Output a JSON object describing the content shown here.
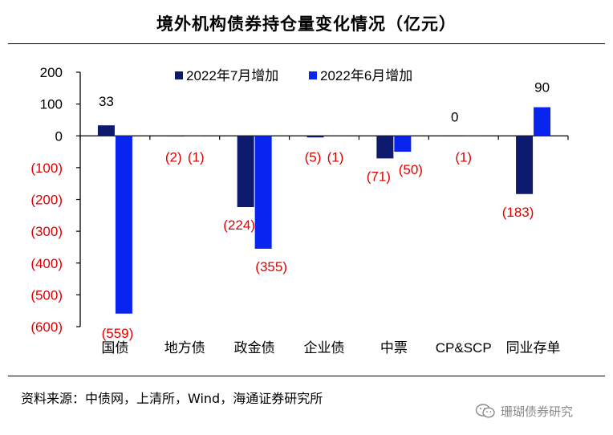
{
  "chart_data": {
    "type": "bar",
    "title": "境外机构债券持仓量变化情况（亿元）",
    "categories": [
      "国债",
      "地方债",
      "政金债",
      "企业债",
      "中票",
      "CP&SCP",
      "同业存单"
    ],
    "series": [
      {
        "name": "2022年7月增加",
        "color": "#0d1a6e",
        "values": [
          33,
          -2,
          -224,
          -5,
          -71,
          0,
          -183
        ],
        "labels": [
          "33",
          "(2)",
          "(224)",
          "(5)",
          "(71)",
          "0",
          "(183)"
        ]
      },
      {
        "name": "2022年6月增加",
        "color": "#0a24f0",
        "values": [
          -559,
          -1,
          -355,
          -1,
          -50,
          -1,
          90
        ],
        "labels": [
          "(559)",
          "(1)",
          "(355)",
          "(1)",
          "(50)",
          "(1)",
          "90"
        ]
      }
    ],
    "ylim": [
      -600,
      200
    ],
    "yticks": [
      200,
      100,
      0,
      -100,
      -200,
      -300,
      -400,
      -500,
      -600
    ],
    "ytick_labels": [
      "200",
      "100",
      "0",
      "(100)",
      "(200)",
      "(300)",
      "(400)",
      "(500)",
      "(600)"
    ],
    "xlabel": "",
    "ylabel": "",
    "legend_position": "top-center",
    "negative_label_color": "#e00000",
    "positive_label_color": "#000000",
    "grid": false
  },
  "source_text": "资料来源：中债网，上清所，Wind，海通证券研究所",
  "watermark_text": "珊瑚债券研究"
}
